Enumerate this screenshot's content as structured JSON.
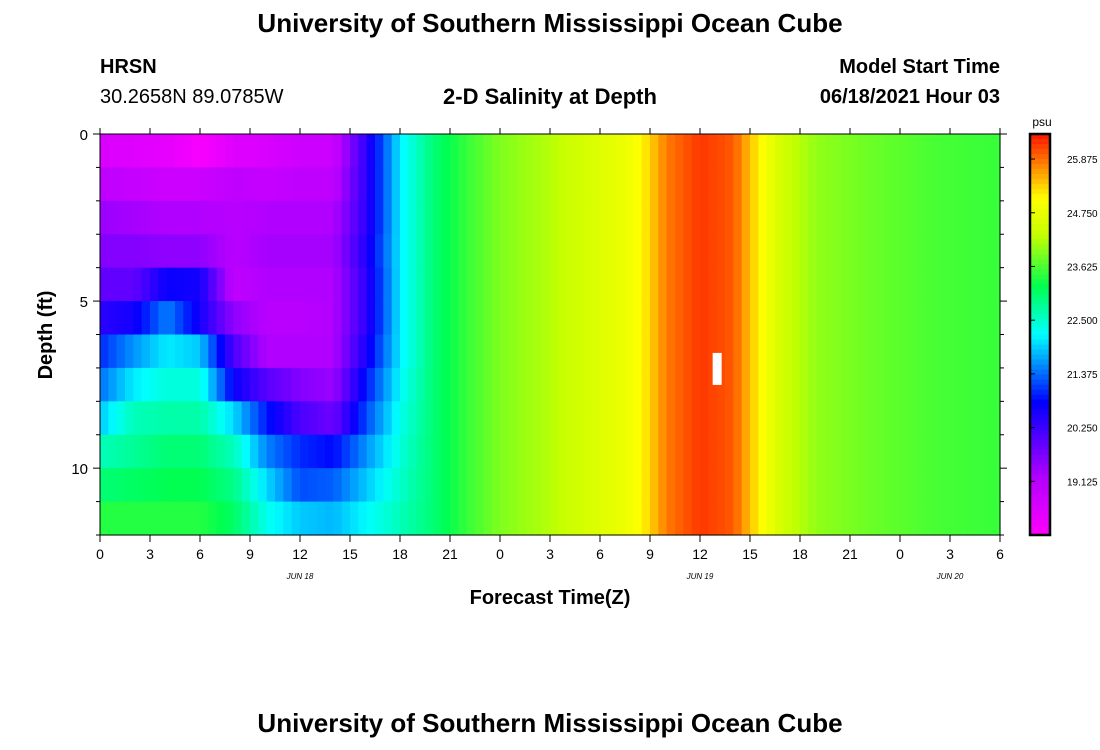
{
  "header": {
    "title": "University of Southern Mississippi Ocean Cube",
    "station": "HRSN",
    "coords": "30.2658N  89.0785W",
    "chart_title": "2-D Salinity at Depth",
    "start_label": "Model Start Time",
    "start_value": "06/18/2021 Hour 03"
  },
  "footer": {
    "title": "University of Southern Mississippi Ocean Cube"
  },
  "chart_data": {
    "type": "heatmap",
    "title": "2-D Salinity at Depth",
    "xlabel": "Forecast Time(Z)",
    "ylabel": "Depth (ft)",
    "units": "psu",
    "x_tick_hours": [
      0,
      3,
      6,
      9,
      12,
      15,
      18,
      21,
      24,
      27,
      30,
      33,
      36,
      39,
      42,
      45,
      48,
      51,
      54
    ],
    "x_tick_labels": [
      "0",
      "3",
      "6",
      "9",
      "12",
      "15",
      "18",
      "21",
      "0",
      "3",
      "6",
      "9",
      "12",
      "15",
      "18",
      "21",
      "0",
      "3",
      "6"
    ],
    "date_labels": [
      {
        "label": "JUN 18",
        "hour": 12
      },
      {
        "label": "JUN 19",
        "hour": 36
      },
      {
        "label": "JUN 20",
        "hour": 51
      }
    ],
    "xlim": [
      0,
      54
    ],
    "ylim": [
      0,
      12
    ],
    "y_ticks": [
      0,
      5,
      10
    ],
    "depth_levels": [
      0.5,
      1.5,
      2.5,
      3.5,
      4.5,
      5.5,
      6.5,
      7.5,
      8.5,
      9.5,
      10.5,
      11.5
    ],
    "colorbar": {
      "min": 18.0,
      "max": 26.4,
      "tick_values": [
        19.125,
        20.25,
        21.375,
        22.5,
        23.625,
        24.75,
        25.875
      ],
      "tick_labels": [
        "19.125",
        "20.250",
        "21.375",
        "22.500",
        "23.625",
        "24.750",
        "25.875"
      ]
    },
    "marker": {
      "hour": 37,
      "depth": 7
    },
    "salinity_by_hour": [
      {
        "hour": 0,
        "values": [
          18.6,
          19.0,
          19.4,
          19.6,
          19.9,
          20.4,
          21.0,
          21.4,
          21.9,
          22.6,
          23.0,
          23.4
        ]
      },
      {
        "hour": 2,
        "values": [
          18.5,
          18.9,
          19.3,
          19.6,
          19.9,
          20.6,
          21.6,
          22.1,
          22.6,
          22.8,
          23.1,
          23.4
        ]
      },
      {
        "hour": 4,
        "values": [
          18.4,
          18.8,
          19.2,
          19.5,
          20.7,
          21.5,
          22.1,
          22.4,
          22.7,
          23.0,
          23.2,
          23.4
        ]
      },
      {
        "hour": 6,
        "values": [
          18.1,
          18.8,
          19.2,
          19.5,
          20.6,
          20.6,
          21.9,
          22.4,
          22.7,
          23.0,
          23.2,
          23.4
        ]
      },
      {
        "hour": 8,
        "values": [
          18.5,
          19.0,
          19.1,
          19.1,
          19.0,
          19.5,
          20.1,
          20.7,
          22.0,
          22.6,
          22.9,
          23.1
        ]
      },
      {
        "hour": 10,
        "values": [
          18.6,
          18.9,
          19.2,
          19.3,
          19.2,
          19.1,
          19.2,
          20.0,
          20.9,
          21.5,
          22.0,
          22.3
        ]
      },
      {
        "hour": 12,
        "values": [
          18.8,
          19.0,
          19.2,
          19.3,
          19.2,
          19.1,
          19.2,
          19.6,
          20.1,
          21.0,
          21.2,
          21.9
        ]
      },
      {
        "hour": 14,
        "values": [
          18.8,
          19.0,
          19.2,
          19.3,
          19.2,
          19.2,
          19.2,
          19.4,
          19.8,
          20.8,
          21.3,
          21.8
        ]
      },
      {
        "hour": 16,
        "values": [
          20.4,
          20.4,
          20.4,
          20.5,
          20.4,
          20.4,
          20.6,
          20.9,
          21.2,
          21.6,
          21.9,
          22.2
        ]
      },
      {
        "hour": 18,
        "values": [
          22.1,
          22.1,
          22.1,
          22.1,
          22.1,
          22.1,
          22.1,
          22.2,
          22.3,
          22.4,
          22.5,
          22.6
        ]
      },
      {
        "hour": 20,
        "values": [
          23.0,
          23.0,
          23.0,
          23.0,
          23.0,
          23.0,
          23.0,
          23.0,
          23.0,
          23.0,
          23.0,
          23.0
        ]
      },
      {
        "hour": 22,
        "values": [
          23.5,
          23.5,
          23.5,
          23.5,
          23.5,
          23.5,
          23.5,
          23.5,
          23.5,
          23.5,
          23.5,
          23.5
        ]
      },
      {
        "hour": 24,
        "values": [
          23.9,
          23.9,
          23.9,
          23.9,
          23.9,
          23.9,
          23.9,
          23.9,
          23.9,
          23.9,
          23.9,
          23.9
        ]
      },
      {
        "hour": 27,
        "values": [
          24.2,
          24.2,
          24.2,
          24.2,
          24.2,
          24.2,
          24.2,
          24.2,
          24.2,
          24.2,
          24.2,
          24.2
        ]
      },
      {
        "hour": 30,
        "values": [
          24.6,
          24.6,
          24.6,
          24.6,
          24.6,
          24.6,
          24.6,
          24.6,
          24.6,
          24.6,
          24.6,
          24.6
        ]
      },
      {
        "hour": 32,
        "values": [
          24.9,
          24.9,
          24.9,
          24.9,
          24.9,
          24.9,
          24.9,
          24.9,
          24.9,
          24.9,
          24.9,
          24.9
        ]
      },
      {
        "hour": 33,
        "values": [
          25.3,
          25.3,
          25.3,
          25.3,
          25.3,
          25.3,
          25.3,
          25.3,
          25.3,
          25.3,
          25.3,
          25.3
        ]
      },
      {
        "hour": 34,
        "values": [
          25.8,
          25.8,
          25.8,
          25.8,
          25.8,
          25.8,
          25.8,
          25.8,
          25.8,
          25.8,
          25.8,
          25.8
        ]
      },
      {
        "hour": 36,
        "values": [
          26.2,
          26.2,
          26.2,
          26.2,
          26.2,
          26.2,
          26.2,
          26.2,
          26.2,
          26.2,
          26.2,
          26.2
        ]
      },
      {
        "hour": 38,
        "values": [
          26.0,
          26.0,
          26.0,
          26.0,
          26.0,
          26.0,
          26.0,
          26.0,
          26.0,
          26.0,
          26.0,
          26.0
        ]
      },
      {
        "hour": 39,
        "values": [
          25.4,
          25.4,
          25.4,
          25.4,
          25.4,
          25.4,
          25.4,
          25.4,
          25.4,
          25.4,
          25.4,
          25.4
        ]
      },
      {
        "hour": 40,
        "values": [
          24.9,
          24.9,
          24.9,
          24.9,
          24.9,
          24.9,
          24.9,
          24.9,
          24.9,
          24.9,
          24.9,
          24.9
        ]
      },
      {
        "hour": 41,
        "values": [
          24.4,
          24.4,
          24.4,
          24.4,
          24.4,
          24.4,
          24.4,
          24.4,
          24.4,
          24.4,
          24.4,
          24.4
        ]
      },
      {
        "hour": 43,
        "values": [
          24.0,
          24.0,
          24.0,
          24.0,
          24.0,
          24.0,
          24.0,
          24.0,
          24.0,
          24.0,
          24.0,
          24.0
        ]
      },
      {
        "hour": 46,
        "values": [
          23.8,
          23.8,
          23.8,
          23.8,
          23.8,
          23.8,
          23.8,
          23.8,
          23.8,
          23.8,
          23.8,
          23.8
        ]
      },
      {
        "hour": 50,
        "values": [
          23.6,
          23.6,
          23.6,
          23.6,
          23.6,
          23.6,
          23.6,
          23.6,
          23.6,
          23.6,
          23.6,
          23.6
        ]
      },
      {
        "hour": 54,
        "values": [
          23.5,
          23.5,
          23.5,
          23.5,
          23.5,
          23.5,
          23.5,
          23.5,
          23.5,
          23.5,
          23.5,
          23.5
        ]
      }
    ]
  }
}
